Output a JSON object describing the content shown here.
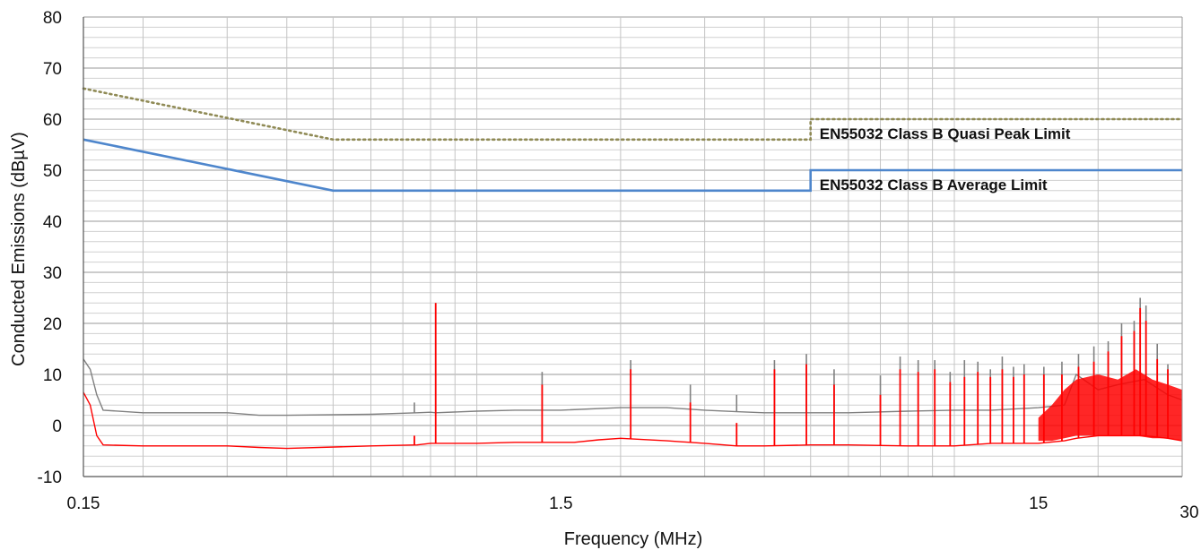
{
  "chart_data": {
    "type": "line",
    "title": "",
    "xlabel": "Frequency (MHz)",
    "ylabel": "Conducted Emissions (dBµV)",
    "xscale": "log",
    "xlim": [
      0.15,
      30
    ],
    "ylim": [
      -10,
      80
    ],
    "x_ticks": [
      0.15,
      1.5,
      15,
      30
    ],
    "x_tick_labels": [
      "0.15",
      "1.5",
      "15",
      "30"
    ],
    "y_ticks": [
      -10,
      0,
      10,
      20,
      30,
      40,
      50,
      60,
      70,
      80
    ],
    "y_tick_labels": [
      "-10",
      "0",
      "10",
      "20",
      "30",
      "40",
      "50",
      "60",
      "70",
      "80"
    ],
    "grid": true,
    "series": [
      {
        "key": "qp_limit",
        "name": "EN55032 Class B Quasi Peak Limit",
        "color": "#8f8a55",
        "style": "dotted",
        "x": [
          0.15,
          0.5,
          5,
          5,
          30
        ],
        "y": [
          66,
          56,
          56,
          60,
          60
        ]
      },
      {
        "key": "avg_limit",
        "name": "EN55032 Class B Average Limit",
        "color": "#4e86cc",
        "style": "solid",
        "x": [
          0.15,
          0.5,
          5,
          5,
          30
        ],
        "y": [
          56,
          46,
          46,
          50,
          50
        ]
      },
      {
        "key": "peak",
        "name": "",
        "color": "#808080",
        "style": "solid",
        "x": [
          0.15,
          0.155,
          0.16,
          0.165,
          0.2,
          0.3,
          0.35,
          0.4,
          0.6,
          0.75,
          0.8,
          0.82,
          1.0,
          1.2,
          1.4,
          1.5,
          2.0,
          2.5,
          3.0,
          3.5,
          4.0,
          5.0,
          6.0,
          8.0,
          10.0,
          12.0,
          15.0,
          17.0,
          18.0,
          20.0,
          22.0,
          25.0,
          28.0,
          30.0
        ],
        "y": [
          13,
          11,
          6,
          3,
          2.5,
          2.5,
          2,
          2,
          2.2,
          2.5,
          2.6,
          2.5,
          2.8,
          3.0,
          3.0,
          3.0,
          3.5,
          3.5,
          3.0,
          2.7,
          2.5,
          2.5,
          2.5,
          2.8,
          3.0,
          3.0,
          3.5,
          4.0,
          10.0,
          7.0,
          8.0,
          9.0,
          6.0,
          5.0
        ],
        "spikes": [
          [
            0.74,
            4.5
          ],
          [
            0.82,
            24
          ],
          [
            1.37,
            10.5
          ],
          [
            2.1,
            12.8
          ],
          [
            2.8,
            8
          ],
          [
            3.5,
            6
          ],
          [
            4.2,
            12.8
          ],
          [
            4.9,
            14
          ],
          [
            5.6,
            11
          ],
          [
            7.0,
            9.8
          ],
          [
            7.7,
            13.5
          ],
          [
            8.4,
            12.8
          ],
          [
            9.1,
            12.8
          ],
          [
            9.8,
            10.5
          ],
          [
            10.5,
            12.8
          ],
          [
            11.2,
            12.5
          ],
          [
            11.9,
            11.0
          ],
          [
            12.6,
            13.5
          ],
          [
            13.3,
            11.5
          ],
          [
            14.0,
            12.0
          ],
          [
            15.4,
            11.5
          ],
          [
            16.8,
            12.5
          ],
          [
            18.2,
            14.0
          ],
          [
            19.6,
            15.5
          ],
          [
            21.0,
            16.5
          ],
          [
            22.4,
            20.0
          ],
          [
            23.8,
            20.5
          ],
          [
            24.5,
            25.0
          ],
          [
            25.2,
            23.5
          ],
          [
            26.6,
            16.0
          ],
          [
            28.0,
            12.0
          ]
        ]
      },
      {
        "key": "average",
        "name": "",
        "color": "#ff0000",
        "style": "solid",
        "x": [
          0.15,
          0.155,
          0.16,
          0.165,
          0.2,
          0.3,
          0.35,
          0.4,
          0.6,
          0.75,
          0.8,
          0.86,
          1.0,
          1.2,
          1.4,
          1.6,
          1.8,
          2.0,
          2.5,
          3.0,
          3.5,
          4.0,
          5.0,
          6.0,
          8.0,
          10.0,
          12.0,
          15.0,
          17.0,
          18.0,
          20.0,
          22.0,
          25.0,
          28.0,
          30.0
        ],
        "y": [
          6.5,
          4,
          -2,
          -3.8,
          -4,
          -4,
          -4.3,
          -4.5,
          -4,
          -3.8,
          -3.5,
          -3.5,
          -3.5,
          -3.3,
          -3.3,
          -3.3,
          -2.8,
          -2.5,
          -3.0,
          -3.5,
          -4.0,
          -4.0,
          -3.8,
          -3.8,
          -4.0,
          -4.0,
          -3.5,
          -3.5,
          -3.0,
          -2.5,
          -2.0,
          -2.0,
          -2.0,
          -2.5,
          -3.0
        ],
        "spikes": [
          [
            0.74,
            -2
          ],
          [
            0.82,
            24
          ],
          [
            1.37,
            8
          ],
          [
            2.1,
            11
          ],
          [
            2.8,
            4.5
          ],
          [
            3.5,
            0.5
          ],
          [
            4.2,
            11
          ],
          [
            4.9,
            12
          ],
          [
            5.6,
            8
          ],
          [
            7.0,
            6
          ],
          [
            7.7,
            11
          ],
          [
            8.4,
            10.5
          ],
          [
            9.1,
            11
          ],
          [
            9.8,
            8.5
          ],
          [
            10.5,
            9.5
          ],
          [
            11.2,
            10.5
          ],
          [
            11.9,
            9.5
          ],
          [
            12.6,
            11
          ],
          [
            13.3,
            9.5
          ],
          [
            14.0,
            10
          ],
          [
            15.4,
            10
          ],
          [
            16.8,
            10
          ],
          [
            18.2,
            11.5
          ],
          [
            19.6,
            12.5
          ],
          [
            21.0,
            14.5
          ],
          [
            22.4,
            17.5
          ],
          [
            23.8,
            18.5
          ],
          [
            24.5,
            23
          ],
          [
            25.2,
            20.5
          ],
          [
            26.6,
            13
          ],
          [
            28.0,
            11
          ]
        ],
        "noise_band": [
          [
            15.0,
            -3.0,
            1.5
          ],
          [
            16.0,
            -3.0,
            4.0
          ],
          [
            17.0,
            -2.5,
            7.0
          ],
          [
            18.0,
            -2.0,
            9.0
          ],
          [
            20.0,
            -2.0,
            10.0
          ],
          [
            22.0,
            -2.0,
            9.0
          ],
          [
            24.0,
            -2.0,
            11.0
          ],
          [
            26.0,
            -2.5,
            9.0
          ],
          [
            28.0,
            -2.5,
            8.0
          ],
          [
            30.0,
            -3.0,
            7.0
          ]
        ]
      }
    ],
    "annotations": [
      {
        "text": "EN55032 Class B Quasi Peak Limit",
        "series": "qp_limit"
      },
      {
        "text": "EN55032 Class B Average Limit",
        "series": "avg_limit"
      }
    ]
  }
}
